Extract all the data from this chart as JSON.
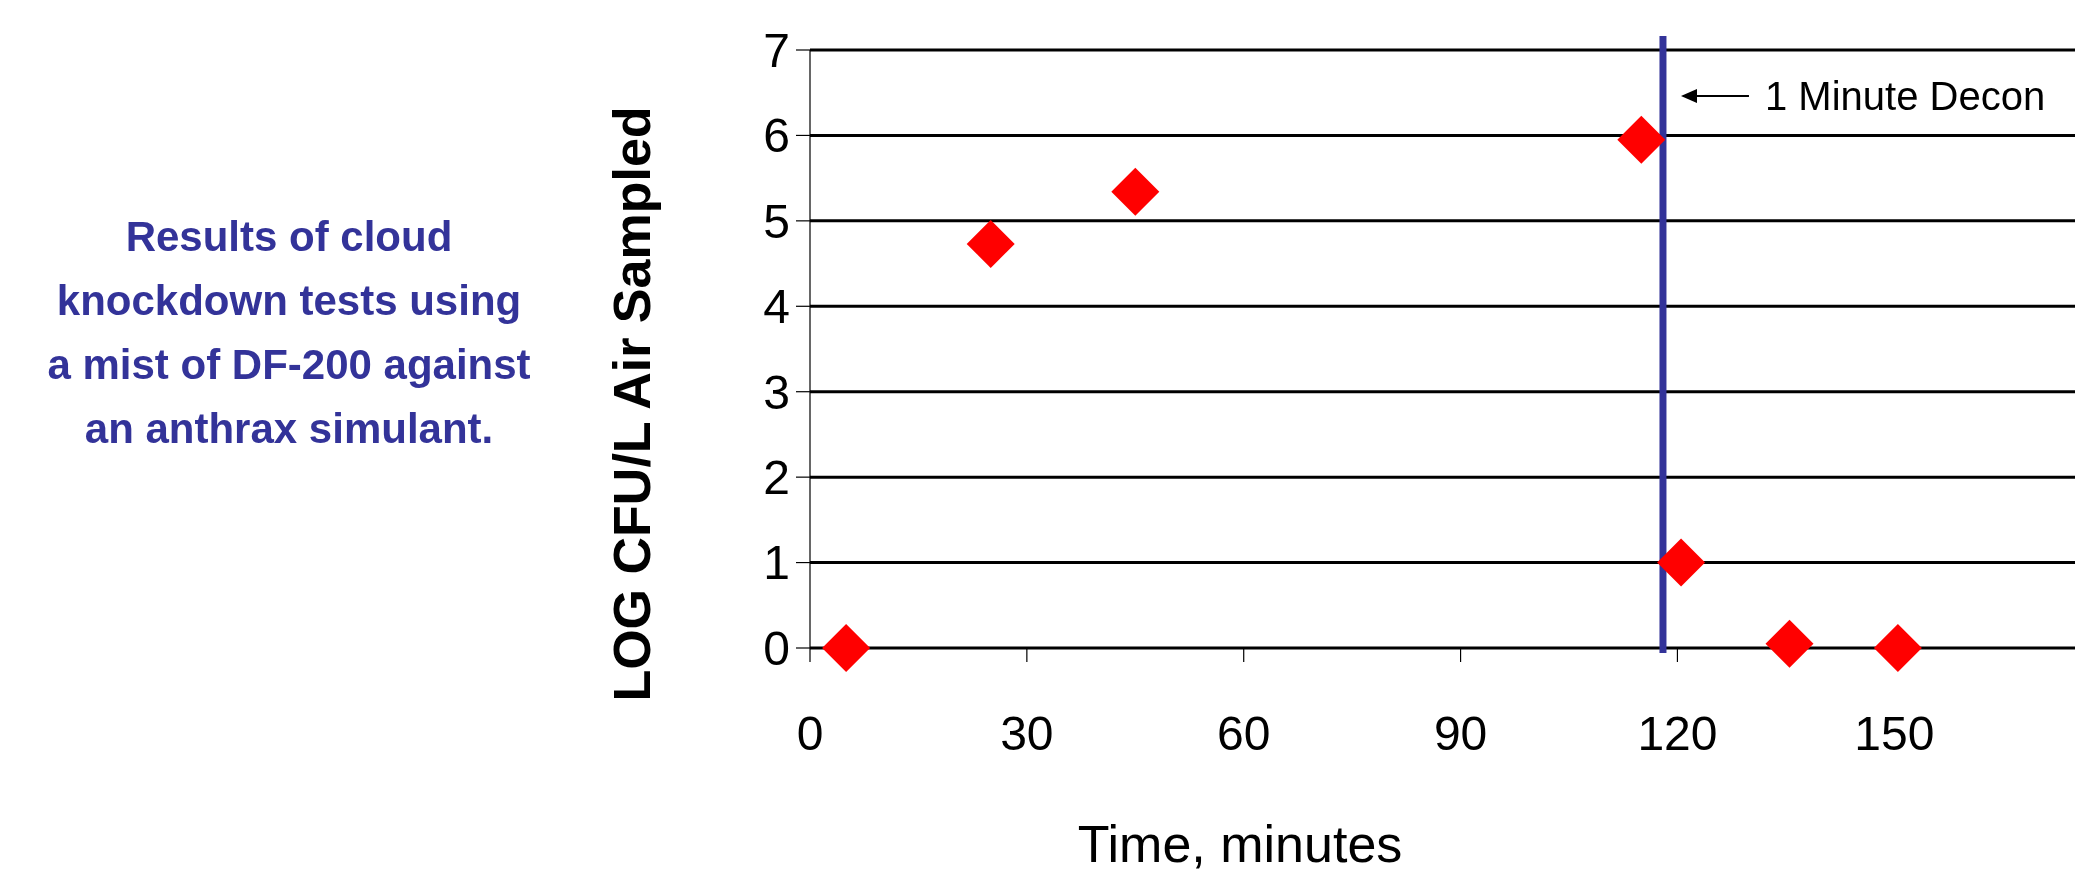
{
  "chart_data": {
    "type": "scatter",
    "title": "Results of cloud knockdown tests using a mist of DF-200 against an anthrax simulant.",
    "xlabel": "Time, minutes",
    "ylabel": "LOG CFU/L Air Sampled",
    "x": [
      5,
      25,
      45,
      115,
      120.5,
      135.5,
      150.5
    ],
    "series": [
      {
        "color": "#ff0000",
        "values": [
          0,
          4.73,
          5.34,
          5.95,
          1.0,
          0.05,
          0
        ]
      }
    ],
    "xlim": [
      0,
      175
    ],
    "xticks": [
      0,
      30,
      60,
      90,
      120,
      150
    ],
    "ylim": [
      0,
      7
    ],
    "yticks": [
      0,
      1,
      2,
      3,
      4,
      5,
      6,
      7
    ],
    "grid": "y",
    "marker": "diamond",
    "ref_lines": [
      {
        "axis": "x",
        "value": 118,
        "label": "1 Minute Decon",
        "color": "#333399"
      }
    ]
  }
}
